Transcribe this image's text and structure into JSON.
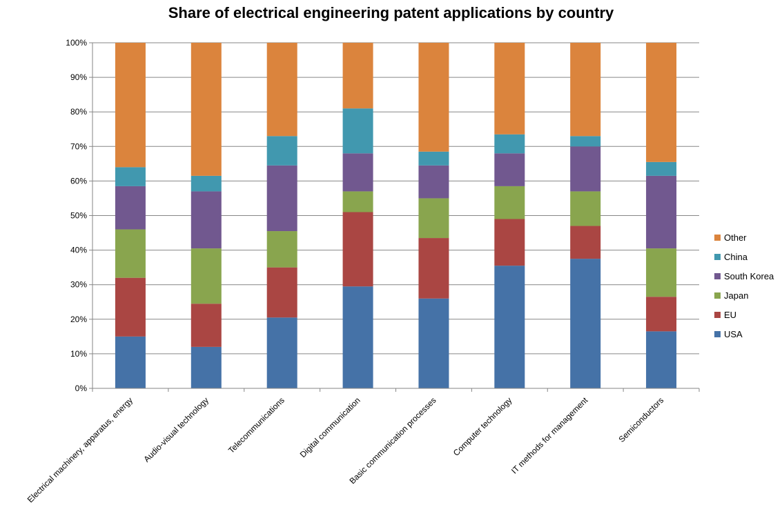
{
  "chart_data": {
    "type": "bar",
    "stacked": true,
    "percent": true,
    "title": "Share of electrical engineering patent applications by country",
    "xlabel": "",
    "ylabel": "",
    "ylim": [
      0,
      100
    ],
    "yticks": [
      "0%",
      "10%",
      "20%",
      "30%",
      "40%",
      "50%",
      "60%",
      "70%",
      "80%",
      "90%",
      "100%"
    ],
    "grid": true,
    "legend_position": "right",
    "categories": [
      "Electrical machinery, apparatus, energy",
      "Audio-visual technology",
      "Telecommunications",
      "Digital communication",
      "Basic communication processes",
      "Computer technology",
      "IT methods for management",
      "Semiconductors"
    ],
    "series": [
      {
        "name": "USA",
        "color": "#4572A7",
        "values": [
          15,
          12,
          20.5,
          29.5,
          26,
          35.5,
          37.5,
          16.5
        ]
      },
      {
        "name": "EU",
        "color": "#AA4643",
        "values": [
          17,
          12.5,
          14.5,
          21.5,
          17.5,
          13.5,
          9.5,
          10
        ]
      },
      {
        "name": "Japan",
        "color": "#89A54E",
        "values": [
          14,
          16,
          10.5,
          6,
          11.5,
          9.5,
          10,
          14
        ]
      },
      {
        "name": "South Korea",
        "color": "#71588F",
        "values": [
          12.5,
          16.5,
          19,
          11,
          9.5,
          9.5,
          13,
          21
        ]
      },
      {
        "name": "China",
        "color": "#4198AF",
        "values": [
          5.5,
          4.5,
          8.5,
          13,
          4,
          5.5,
          3,
          4
        ]
      },
      {
        "name": "Other",
        "color": "#DB843D",
        "values": [
          36,
          38.5,
          27,
          19,
          31.5,
          26.5,
          27,
          34.5
        ]
      }
    ]
  }
}
